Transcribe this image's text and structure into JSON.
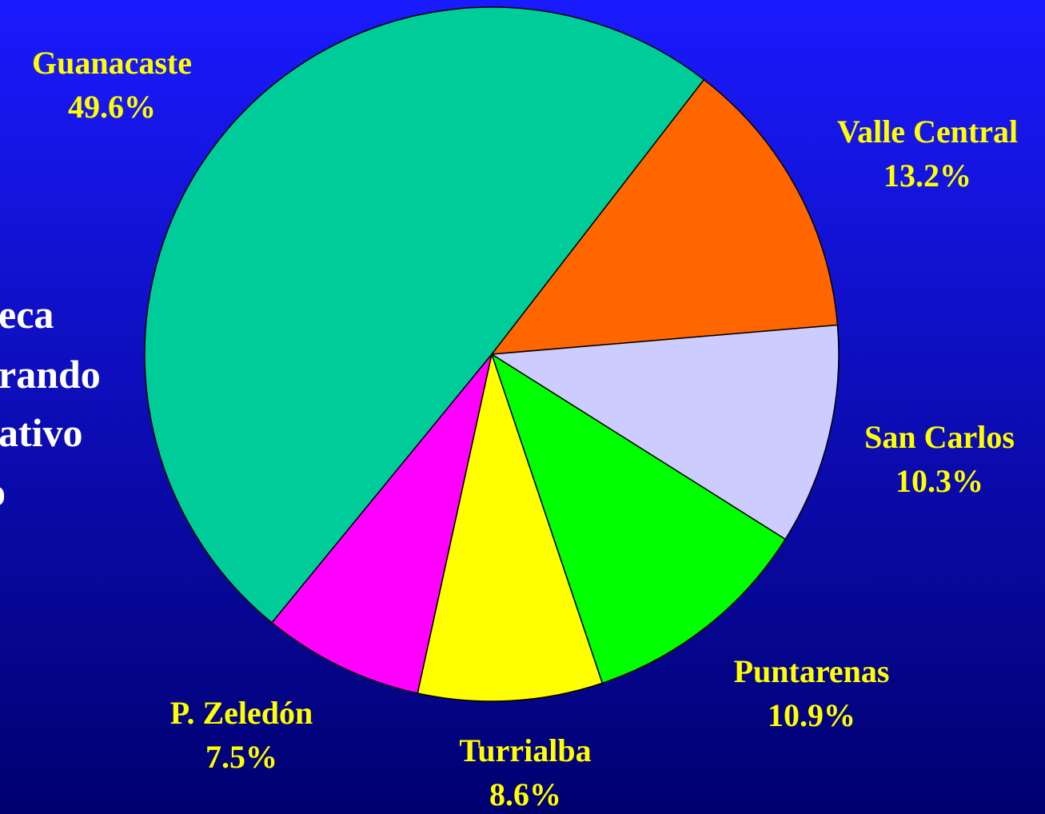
{
  "chart_data": {
    "type": "pie",
    "categories": [
      "Valle Central",
      "San Carlos",
      "Puntarenas",
      "Turrialba",
      "P. Zeledón",
      "Guanacaste"
    ],
    "values": [
      13.2,
      10.3,
      10.9,
      8.6,
      7.5,
      49.6
    ],
    "value_labels": [
      "13.2%",
      "10.3%",
      "10.9%",
      "8.6%",
      "7.5%",
      "49.6%"
    ],
    "colors": [
      "#ff6600",
      "#ccccff",
      "#00ff00",
      "#ffff00",
      "#ff00ff",
      "#00cc99"
    ],
    "annotations": [
      "eca",
      "rando",
      "ativo",
      "o"
    ]
  }
}
